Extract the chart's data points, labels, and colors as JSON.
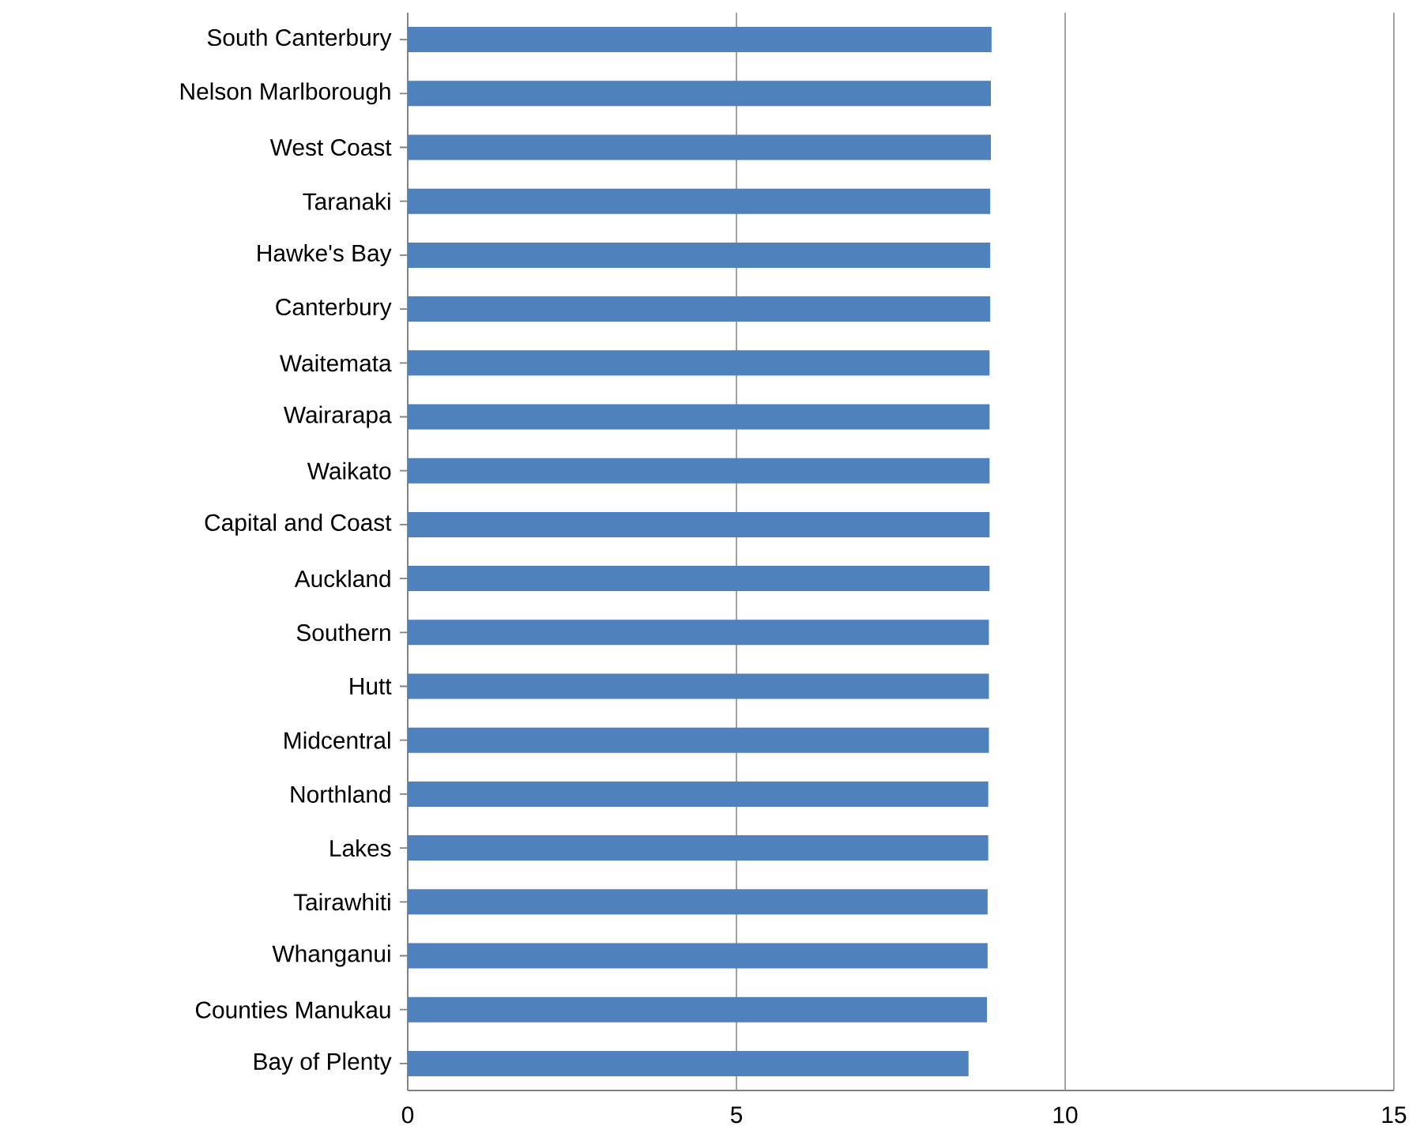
{
  "chart_data": {
    "type": "bar",
    "orientation": "horizontal",
    "categories": [
      "South Canterbury",
      "Nelson Marlborough",
      "West Coast",
      "Taranaki",
      "Hawke's Bay",
      "Canterbury",
      "Waitemata",
      "Wairarapa",
      "Waikato",
      "Capital and Coast",
      "Auckland",
      "Southern",
      "Hutt",
      "Midcentral",
      "Northland",
      "Lakes",
      "Tairawhiti",
      "Whanganui",
      "Counties Manukau",
      "Bay of Plenty"
    ],
    "values": [
      8.88,
      8.87,
      8.87,
      8.86,
      8.86,
      8.86,
      8.85,
      8.85,
      8.85,
      8.85,
      8.85,
      8.84,
      8.84,
      8.84,
      8.83,
      8.83,
      8.82,
      8.82,
      8.81,
      8.53
    ],
    "color": "#4f81bd",
    "xlim": [
      0,
      15
    ],
    "xticks": [
      0,
      5,
      10,
      15
    ],
    "grid": "x"
  }
}
